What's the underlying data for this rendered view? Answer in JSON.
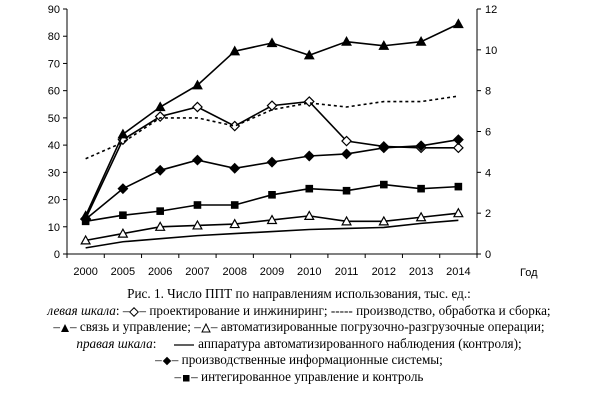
{
  "chart_data": {
    "type": "line",
    "x": [
      "2000",
      "2005",
      "2006",
      "2007",
      "2008",
      "2009",
      "2010",
      "2011",
      "2012",
      "2013",
      "2014"
    ],
    "xlabel": "Год",
    "y_left": {
      "min": 0,
      "max": 90,
      "step": 10
    },
    "y_right": {
      "min": 0,
      "max": 12,
      "step": 2
    },
    "grid": false,
    "series": [
      {
        "key": "design",
        "axis": "left",
        "marker": "diamond-open",
        "dash": "none",
        "values": [
          13,
          42,
          50.5,
          54,
          47,
          54.5,
          56,
          41.5,
          39.5,
          39,
          39
        ]
      },
      {
        "key": "production",
        "axis": "left",
        "marker": "none",
        "dash": "dotted",
        "values": [
          35,
          41,
          50,
          50,
          47,
          53,
          55.5,
          54,
          56,
          56,
          58
        ]
      },
      {
        "key": "communication",
        "axis": "left",
        "marker": "triangle-filled",
        "dash": "none",
        "values": [
          14,
          44,
          54,
          62,
          74.5,
          77.5,
          73,
          78,
          76.5,
          78,
          84.5
        ]
      },
      {
        "key": "handling",
        "axis": "left",
        "marker": "triangle-open",
        "dash": "none",
        "values": [
          5,
          7.5,
          10,
          10.5,
          11,
          12.5,
          14,
          12,
          12,
          13.5,
          15
        ]
      },
      {
        "key": "monitoring",
        "axis": "right",
        "marker": "none",
        "dash": "none",
        "values": [
          0.3,
          0.6,
          0.75,
          0.9,
          1.0,
          1.1,
          1.2,
          1.25,
          1.3,
          1.5,
          1.65
        ]
      },
      {
        "key": "mis",
        "axis": "right",
        "marker": "diamond-filled",
        "dash": "none",
        "values": [
          1.7,
          3.2,
          4.1,
          4.6,
          4.2,
          4.5,
          4.8,
          4.9,
          5.2,
          5.3,
          5.6
        ]
      },
      {
        "key": "integrated",
        "axis": "right",
        "marker": "square-filled",
        "dash": "none",
        "values": [
          1.6,
          1.9,
          2.1,
          2.4,
          2.4,
          2.9,
          3.2,
          3.1,
          3.4,
          3.2,
          3.3
        ]
      }
    ]
  },
  "caption": {
    "title": "Рис. 1. Число ППТ по направлениям использования, тыс. ед.:",
    "left_scale_label": "левая шкала",
    "right_scale_label": "правая шкала",
    "design": "– проектирование и инжиниринг;",
    "production": "- производство, обработка и сборка;",
    "communication": "– связь и управление;",
    "handling": "– автоматизированные погрузочно-разгрузочные операции;",
    "monitoring": "аппаратура автоматизированного наблюдения (контроля);",
    "mis": "– производственные информационные системы;",
    "integrated": "– интегированное управление и контроль"
  }
}
